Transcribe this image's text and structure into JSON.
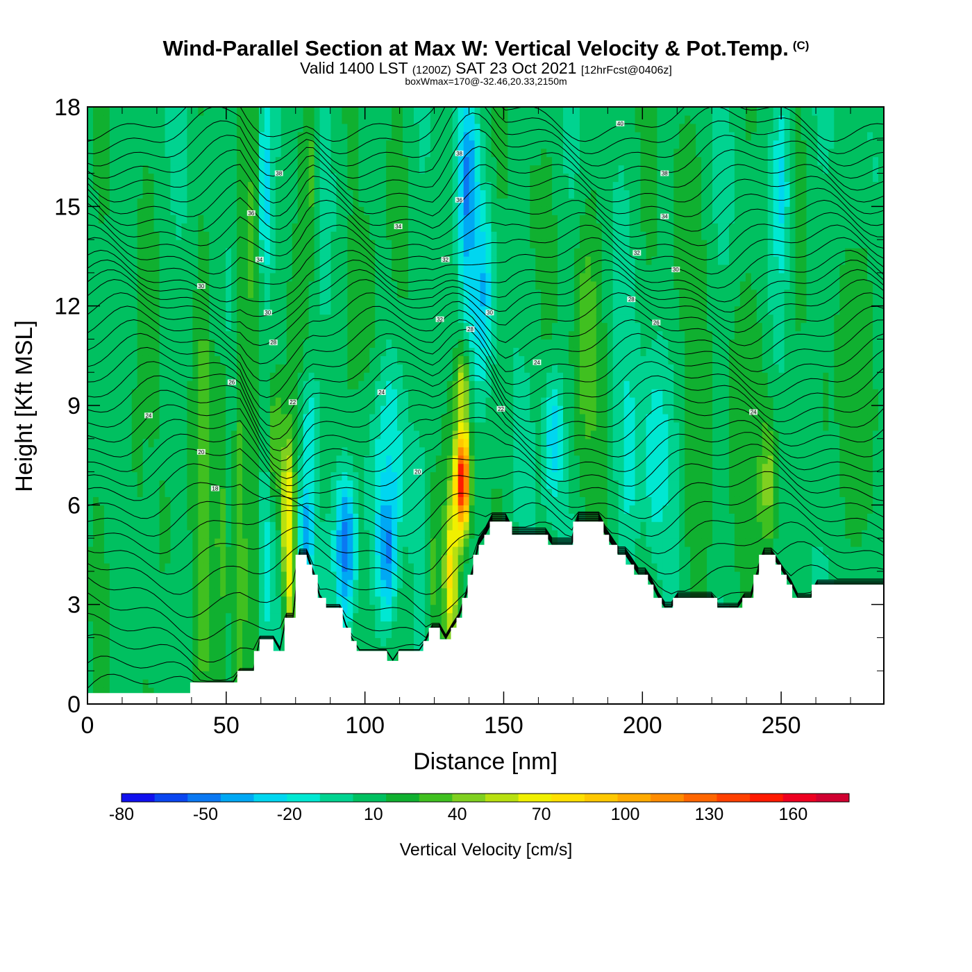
{
  "header": {
    "title_main": "Wind-Parallel Section at Max W: Vertical Velocity & Pot.Temp.",
    "copyright": "(C)",
    "valid_prefix": "Valid 1400 LST",
    "valid_zulu": "(1200Z)",
    "valid_date": "SAT 23 Oct 2021",
    "forecast": "[12hrFcst@0406z]",
    "box_info": "boxWmax=170@-32.46,20.33,2150m"
  },
  "colors": {
    "terrain": "#ffffff",
    "contour": "#000000",
    "background": "#00d08a",
    "colorbar": [
      "#1010ee",
      "#0a46f0",
      "#0a78f2",
      "#00a8f4",
      "#00d6f0",
      "#00e8d2",
      "#00d390",
      "#00c060",
      "#10b030",
      "#40c020",
      "#80d020",
      "#b8e010",
      "#f0f000",
      "#ffe000",
      "#ffc800",
      "#ffaa00",
      "#ff8c00",
      "#ff6600",
      "#ff4000",
      "#ff1a00",
      "#ee0020",
      "#d00030"
    ]
  },
  "chart_data": {
    "type": "heatmap",
    "xlabel": "Distance [nm]",
    "ylabel": "Height [Kft MSL]",
    "xlim": [
      0,
      287
    ],
    "ylim": [
      0,
      18
    ],
    "x_ticks": [
      0,
      50,
      100,
      150,
      200,
      250
    ],
    "y_ticks": [
      0,
      3,
      6,
      9,
      12,
      15,
      18
    ],
    "colorbar": {
      "label": "Vertical Velocity [cm/s]",
      "min": -80,
      "max": 180,
      "tick_values": [
        -80,
        -50,
        -20,
        10,
        40,
        70,
        100,
        130,
        160
      ]
    },
    "cells": [
      {
        "x": 18,
        "y": 8,
        "sx": 7,
        "sy": 10,
        "v": 15
      },
      {
        "x": 28,
        "y": 5,
        "sx": 6,
        "sy": 8,
        "v": 15
      },
      {
        "x": 42,
        "y": 6,
        "sx": 3,
        "sy": 7,
        "v": 40
      },
      {
        "x": 48,
        "y": 5,
        "sx": 2.5,
        "sy": 7,
        "v": 30
      },
      {
        "x": 55,
        "y": 5,
        "sx": 2.5,
        "sy": 6,
        "v": 35
      },
      {
        "x": 61,
        "y": 5,
        "sx": 2.5,
        "sy": 6,
        "v": 30
      },
      {
        "x": 64,
        "y": 4.5,
        "sx": 2.5,
        "sy": 4,
        "v": -15
      },
      {
        "x": 72,
        "y": 6,
        "sx": 2.5,
        "sy": 2.2,
        "v": 80
      },
      {
        "x": 73,
        "y": 4,
        "sx": 2,
        "sy": 2,
        "v": 70
      },
      {
        "x": 68,
        "y": 8,
        "sx": 3,
        "sy": 2,
        "v": 40
      },
      {
        "x": 79,
        "y": 5.3,
        "sx": 3,
        "sy": 1.6,
        "v": -45
      },
      {
        "x": 80,
        "y": 8,
        "sx": 3,
        "sy": 2,
        "v": -20
      },
      {
        "x": 93,
        "y": 4.8,
        "sx": 4,
        "sy": 2.4,
        "v": -55
      },
      {
        "x": 108,
        "y": 5.2,
        "sx": 3.5,
        "sy": 2.3,
        "v": -65
      },
      {
        "x": 108,
        "y": 8,
        "sx": 6,
        "sy": 3,
        "v": -25
      },
      {
        "x": 125,
        "y": 4,
        "sx": 3,
        "sy": 3,
        "v": 30
      },
      {
        "x": 131,
        "y": 4,
        "sx": 2.5,
        "sy": 2.5,
        "v": 80
      },
      {
        "x": 135,
        "y": 6.8,
        "sx": 2.6,
        "sy": 1.6,
        "v": 170
      },
      {
        "x": 135,
        "y": 9.5,
        "sx": 2.3,
        "sy": 1.2,
        "v": 75
      },
      {
        "x": 128,
        "y": 13,
        "sx": 6,
        "sy": 5,
        "v": 10
      },
      {
        "x": 137,
        "y": 15.5,
        "sx": 3.5,
        "sy": 3,
        "v": -50
      },
      {
        "x": 142,
        "y": 12.5,
        "sx": 4,
        "sy": 2.5,
        "v": -35
      },
      {
        "x": 168,
        "y": 8,
        "sx": 3.5,
        "sy": 2,
        "v": -30
      },
      {
        "x": 180,
        "y": 11,
        "sx": 5,
        "sy": 4,
        "v": 35
      },
      {
        "x": 195,
        "y": 7.5,
        "sx": 4,
        "sy": 3,
        "v": -15
      },
      {
        "x": 205,
        "y": 7.5,
        "sx": 5,
        "sy": 3,
        "v": -20
      },
      {
        "x": 220,
        "y": 6,
        "sx": 6,
        "sy": 5,
        "v": 20
      },
      {
        "x": 245,
        "y": 6.8,
        "sx": 3.5,
        "sy": 2,
        "v": 55
      },
      {
        "x": 238,
        "y": 9,
        "sx": 8,
        "sy": 4,
        "v": 25
      },
      {
        "x": 250,
        "y": 15.5,
        "sx": 3,
        "sy": 3,
        "v": -25
      },
      {
        "x": 266,
        "y": 9,
        "sx": 6,
        "sy": 4,
        "v": 15
      },
      {
        "x": 280,
        "y": 10,
        "sx": 5,
        "sy": 5,
        "v": 25
      },
      {
        "x": 60,
        "y": 14,
        "sx": 4,
        "sy": 4,
        "v": 30
      },
      {
        "x": 64,
        "y": 15.5,
        "sx": 2.5,
        "sy": 3,
        "v": -30
      },
      {
        "x": 80,
        "y": 16,
        "sx": 3,
        "sy": 3,
        "v": 30
      },
      {
        "x": 100,
        "y": 12,
        "sx": 8,
        "sy": 4,
        "v": 20
      },
      {
        "x": 160,
        "y": 15,
        "sx": 6,
        "sy": 4,
        "v": 15
      },
      {
        "x": 215,
        "y": 15,
        "sx": 6,
        "sy": 4,
        "v": 20
      }
    ],
    "terrain": [
      [
        0,
        0.33
      ],
      [
        37,
        0.33
      ],
      [
        37,
        0.65
      ],
      [
        54,
        0.65
      ],
      [
        54,
        1.0
      ],
      [
        60,
        1.0
      ],
      [
        60,
        1.6
      ],
      [
        62,
        1.6
      ],
      [
        62,
        1.95
      ],
      [
        67,
        1.95
      ],
      [
        67,
        1.6
      ],
      [
        71,
        1.6
      ],
      [
        71,
        2.6
      ],
      [
        75,
        2.6
      ],
      [
        75,
        4.5
      ],
      [
        79,
        4.5
      ],
      [
        79,
        4.2
      ],
      [
        81,
        4.2
      ],
      [
        81,
        3.9
      ],
      [
        83,
        3.9
      ],
      [
        83,
        3.2
      ],
      [
        86,
        3.2
      ],
      [
        86,
        2.9
      ],
      [
        92,
        2.9
      ],
      [
        92,
        2.3
      ],
      [
        95,
        2.3
      ],
      [
        95,
        1.9
      ],
      [
        97,
        1.9
      ],
      [
        97,
        1.6
      ],
      [
        108,
        1.6
      ],
      [
        108,
        1.3
      ],
      [
        112,
        1.3
      ],
      [
        112,
        1.6
      ],
      [
        121,
        1.6
      ],
      [
        121,
        1.9
      ],
      [
        123,
        1.9
      ],
      [
        123,
        2.3
      ],
      [
        127,
        2.3
      ],
      [
        127,
        1.95
      ],
      [
        131,
        1.95
      ],
      [
        131,
        2.3
      ],
      [
        133,
        2.3
      ],
      [
        133,
        2.6
      ],
      [
        135,
        2.6
      ],
      [
        135,
        3.2
      ],
      [
        137,
        3.2
      ],
      [
        137,
        3.9
      ],
      [
        139,
        3.9
      ],
      [
        139,
        4.5
      ],
      [
        141,
        4.5
      ],
      [
        141,
        4.8
      ],
      [
        143,
        4.8
      ],
      [
        143,
        5.1
      ],
      [
        145,
        5.1
      ],
      [
        145,
        5.5
      ],
      [
        153,
        5.5
      ],
      [
        153,
        5.1
      ],
      [
        166,
        5.1
      ],
      [
        166,
        4.8
      ],
      [
        175,
        4.8
      ],
      [
        175,
        5.5
      ],
      [
        186,
        5.5
      ],
      [
        186,
        5.1
      ],
      [
        188,
        5.1
      ],
      [
        188,
        4.8
      ],
      [
        191,
        4.8
      ],
      [
        191,
        4.5
      ],
      [
        194,
        4.5
      ],
      [
        194,
        4.2
      ],
      [
        197,
        4.2
      ],
      [
        197,
        3.9
      ],
      [
        202,
        3.9
      ],
      [
        202,
        3.6
      ],
      [
        204,
        3.6
      ],
      [
        204,
        3.2
      ],
      [
        207,
        3.2
      ],
      [
        207,
        2.9
      ],
      [
        211,
        2.9
      ],
      [
        211,
        3.2
      ],
      [
        227,
        3.2
      ],
      [
        227,
        2.9
      ],
      [
        236,
        2.9
      ],
      [
        236,
        3.2
      ],
      [
        240,
        3.2
      ],
      [
        240,
        3.9
      ],
      [
        242,
        3.9
      ],
      [
        242,
        4.5
      ],
      [
        248,
        4.5
      ],
      [
        248,
        4.2
      ],
      [
        250,
        4.2
      ],
      [
        250,
        3.9
      ],
      [
        252,
        3.9
      ],
      [
        252,
        3.6
      ],
      [
        254,
        3.6
      ],
      [
        254,
        3.2
      ],
      [
        261,
        3.2
      ],
      [
        261,
        3.6
      ],
      [
        287,
        3.6
      ]
    ],
    "contour_levels": [
      0.3,
      0.8,
      1.4,
      2.0,
      2.7,
      3.4,
      4.1,
      4.7,
      5.3,
      5.8,
      6.3,
      6.8,
      7.2,
      7.6,
      8.0,
      8.4,
      8.8,
      9.2,
      9.6,
      10.0,
      10.4,
      10.8,
      11.2,
      11.6,
      12.0,
      12.3,
      12.6,
      12.9,
      13.3,
      13.7,
      14.1,
      14.5,
      14.9,
      15.3,
      15.7,
      16.1,
      16.5,
      16.9,
      17.3,
      17.7
    ],
    "contour_labels": [
      {
        "x": 22,
        "y": 8.7,
        "text": "24"
      },
      {
        "x": 41,
        "y": 7.6,
        "text": "20"
      },
      {
        "x": 46,
        "y": 6.5,
        "text": "18"
      },
      {
        "x": 52,
        "y": 9.7,
        "text": "26"
      },
      {
        "x": 41,
        "y": 12.6,
        "text": "30"
      },
      {
        "x": 62,
        "y": 13.4,
        "text": "34"
      },
      {
        "x": 59,
        "y": 14.8,
        "text": "36"
      },
      {
        "x": 69,
        "y": 16.0,
        "text": "38"
      },
      {
        "x": 65,
        "y": 11.8,
        "text": "30"
      },
      {
        "x": 67,
        "y": 10.9,
        "text": "28"
      },
      {
        "x": 74,
        "y": 9.1,
        "text": "22"
      },
      {
        "x": 106,
        "y": 9.4,
        "text": "24"
      },
      {
        "x": 119,
        "y": 7.0,
        "text": "20"
      },
      {
        "x": 112,
        "y": 14.4,
        "text": "34"
      },
      {
        "x": 129,
        "y": 13.4,
        "text": "32"
      },
      {
        "x": 127,
        "y": 11.6,
        "text": "32"
      },
      {
        "x": 138,
        "y": 11.3,
        "text": "28"
      },
      {
        "x": 134,
        "y": 16.6,
        "text": "38"
      },
      {
        "x": 134,
        "y": 15.2,
        "text": "36"
      },
      {
        "x": 145,
        "y": 11.8,
        "text": "30"
      },
      {
        "x": 149,
        "y": 8.9,
        "text": "22"
      },
      {
        "x": 162,
        "y": 10.3,
        "text": "24"
      },
      {
        "x": 192,
        "y": 17.5,
        "text": "40"
      },
      {
        "x": 208,
        "y": 16.0,
        "text": "38"
      },
      {
        "x": 208,
        "y": 14.7,
        "text": "34"
      },
      {
        "x": 198,
        "y": 13.6,
        "text": "32"
      },
      {
        "x": 212,
        "y": 13.1,
        "text": "30"
      },
      {
        "x": 196,
        "y": 12.2,
        "text": "28"
      },
      {
        "x": 205,
        "y": 11.5,
        "text": "26"
      },
      {
        "x": 240,
        "y": 8.8,
        "text": "24"
      }
    ]
  }
}
